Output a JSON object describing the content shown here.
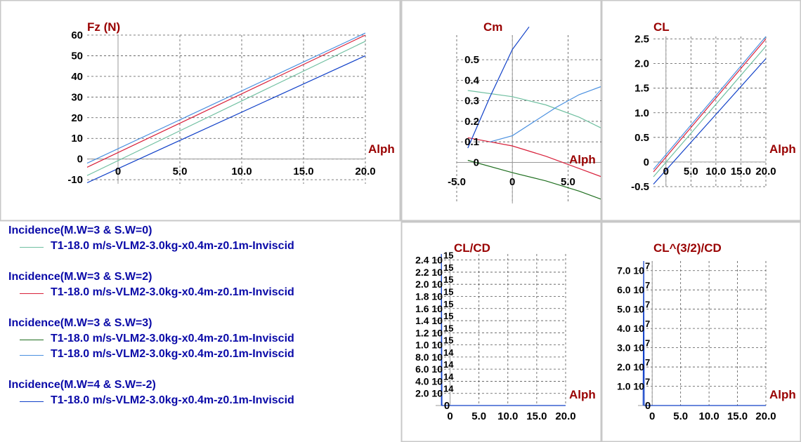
{
  "colors": {
    "axis": "#000000",
    "grid": "#555555",
    "title": "#990000",
    "tick": "#000000",
    "legend_text": "#0a0aa8",
    "panel_border": "#c8c8c8",
    "series": [
      "#6fbfa0",
      "#d8203a",
      "#1e6e1e",
      "#4a90e0",
      "#1040c8"
    ]
  },
  "legend": {
    "groups": [
      {
        "title": "Incidence(M.W=3 & S.W=0)",
        "items": [
          {
            "label": "T1-18.0 m/s-VLM2-3.0kg-x0.4m-z0.1m-Inviscid",
            "color_index": 0
          }
        ]
      },
      {
        "title": "Incidence(M.W=3 & S.W=2)",
        "items": [
          {
            "label": "T1-18.0 m/s-VLM2-3.0kg-x0.4m-z0.1m-Inviscid",
            "color_index": 1
          }
        ]
      },
      {
        "title": "Incidence(M.W=3 & S.W=3)",
        "items": [
          {
            "label": "T1-18.0 m/s-VLM2-3.0kg-x0.4m-z0.1m-Inviscid",
            "color_index": 2
          },
          {
            "label": "T1-18.0 m/s-VLM2-3.0kg-x0.4m-z0.1m-Inviscid",
            "color_index": 3
          }
        ]
      },
      {
        "title": "Incidence(M.W=4 & S.W=-2)",
        "items": [
          {
            "label": "T1-18.0 m/s-VLM2-3.0kg-x0.4m-z0.1m-Inviscid",
            "color_index": 4
          }
        ]
      }
    ]
  },
  "chart_data": [
    {
      "type": "line",
      "title": "Fz (N)",
      "xlabel": "Alph",
      "xlim": [
        -2.5,
        20
      ],
      "ylim": [
        -12,
        60
      ],
      "xticks": [
        "0",
        "5.0",
        "10.0",
        "15.0",
        "20.0"
      ],
      "xtick_values": [
        0,
        5,
        10,
        15,
        20
      ],
      "yticks": [
        "-10",
        "0",
        "10",
        "20",
        "30",
        "40",
        "50",
        "60"
      ],
      "ytick_values": [
        -10,
        0,
        10,
        20,
        30,
        40,
        50,
        60
      ],
      "grid": true,
      "series": [
        {
          "color_index": 0,
          "x": [
            -2.5,
            20
          ],
          "y": [
            -8,
            57
          ]
        },
        {
          "color_index": 1,
          "x": [
            -2.5,
            20
          ],
          "y": [
            -4,
            60
          ]
        },
        {
          "color_index": 3,
          "x": [
            -2.5,
            20
          ],
          "y": [
            -2,
            61
          ]
        },
        {
          "color_index": 4,
          "x": [
            -2.5,
            20
          ],
          "y": [
            -11.5,
            50
          ]
        }
      ]
    },
    {
      "type": "line",
      "title": "Cm",
      "xlabel": "Alph",
      "xlim": [
        -5,
        8
      ],
      "ylim": [
        -0.2,
        0.62
      ],
      "xticks": [
        "-5.0",
        "0",
        "5.0"
      ],
      "xtick_values": [
        -5,
        0,
        5
      ],
      "yticks": [
        "0",
        "0.1",
        "0.2",
        "0.3",
        "0.4",
        "0.5"
      ],
      "ytick_values": [
        0,
        0.1,
        0.2,
        0.3,
        0.4,
        0.5
      ],
      "grid": true,
      "series": [
        {
          "color_index": 0,
          "x": [
            -4,
            0,
            3,
            6,
            9
          ],
          "y": [
            0.35,
            0.32,
            0.28,
            0.22,
            0.14
          ]
        },
        {
          "color_index": 1,
          "x": [
            -4,
            0,
            3,
            6,
            9
          ],
          "y": [
            0.12,
            0.08,
            0.03,
            -0.03,
            -0.09
          ]
        },
        {
          "color_index": 2,
          "x": [
            -4,
            0,
            3,
            6,
            9
          ],
          "y": [
            0.01,
            -0.05,
            -0.09,
            -0.14,
            -0.2
          ]
        },
        {
          "color_index": 3,
          "x": [
            -2,
            0,
            2,
            4,
            6,
            8,
            9
          ],
          "y": [
            0.1,
            0.13,
            0.2,
            0.27,
            0.33,
            0.37,
            0.38
          ]
        },
        {
          "color_index": 4,
          "x": [
            -4,
            -2,
            0,
            1.5
          ],
          "y": [
            0.07,
            0.32,
            0.55,
            0.66
          ]
        }
      ]
    },
    {
      "type": "line",
      "title": "CL",
      "xlabel": "Alph",
      "xlim": [
        -2.5,
        20
      ],
      "ylim": [
        -0.5,
        2.55
      ],
      "xticks": [
        "0",
        "5.0",
        "10.0",
        "15.0",
        "20.0"
      ],
      "xtick_values": [
        0,
        5,
        10,
        15,
        20
      ],
      "yticks": [
        "-0.5",
        "0",
        "0.5",
        "1.0",
        "1.5",
        "2.0",
        "2.5"
      ],
      "ytick_values": [
        -0.5,
        0,
        0.5,
        1.0,
        1.5,
        2.0,
        2.5
      ],
      "grid": true,
      "series": [
        {
          "color_index": 0,
          "x": [
            -2.5,
            20
          ],
          "y": [
            -0.3,
            2.35
          ]
        },
        {
          "color_index": 1,
          "x": [
            -2.5,
            20
          ],
          "y": [
            -0.2,
            2.5
          ]
        },
        {
          "color_index": 3,
          "x": [
            -2.5,
            20
          ],
          "y": [
            -0.15,
            2.55
          ]
        },
        {
          "color_index": 4,
          "x": [
            -2.5,
            20
          ],
          "y": [
            -0.45,
            2.1
          ]
        }
      ]
    },
    {
      "type": "line",
      "title": "CL/CD",
      "xlabel": "Alph",
      "xlim": [
        -2.5,
        20
      ],
      "ylim": [
        0,
        2500000000000000.0
      ],
      "xticks": [
        "0",
        "5.0",
        "10.0",
        "15.0",
        "20.0"
      ],
      "xtick_values": [
        0,
        5,
        10,
        15,
        20
      ],
      "yticks": [
        "2.0 10",
        "4.0 10",
        "6.0 10",
        "8.0 10",
        "1.0 10",
        "1.2 10",
        "1.4 10",
        "1.6 10",
        "1.8 10",
        "2.0 10",
        "2.2 10",
        "2.4 10"
      ],
      "ytick_exponents": [
        "14",
        "14",
        "14",
        "14",
        "15",
        "15",
        "15",
        "15",
        "15",
        "15",
        "15",
        "15"
      ],
      "ytick_values": [
        200000000000000.0,
        400000000000000.0,
        600000000000000.0,
        800000000000000.0,
        1000000000000000.0,
        1200000000000000.0,
        1400000000000000.0,
        1600000000000000.0,
        1800000000000000.0,
        2000000000000000.0,
        2200000000000000.0,
        2400000000000000.0
      ],
      "yzero_label": "0",
      "grid": true,
      "series": [
        {
          "color_index": 4,
          "x": [
            -1.5,
            -1.5,
            -1.4,
            20
          ],
          "y": [
            0,
            2500000000000000.0,
            0,
            0
          ]
        }
      ]
    },
    {
      "type": "line",
      "title": "CL^(3/2)/CD",
      "xlabel": "Alph",
      "xlim": [
        -2.5,
        20
      ],
      "ylim": [
        0,
        75000000.0
      ],
      "xticks": [
        "0",
        "5.0",
        "10.0",
        "15.0",
        "20.0"
      ],
      "xtick_values": [
        0,
        5,
        10,
        15,
        20
      ],
      "yticks": [
        "1.0 10",
        "2.0 10",
        "3.0 10",
        "4.0 10",
        "5.0 10",
        "6.0 10",
        "7.0 10"
      ],
      "ytick_exponents": [
        "7",
        "7",
        "7",
        "7",
        "7",
        "7",
        "7"
      ],
      "ytick_values": [
        10000000.0,
        20000000.0,
        30000000.0,
        40000000.0,
        50000000.0,
        60000000.0,
        70000000.0
      ],
      "yzero_label": "0",
      "grid": true,
      "series": [
        {
          "color_index": 4,
          "x": [
            -1.6,
            -1.5,
            -1.4,
            20
          ],
          "y": [
            0,
            75000000.0,
            0,
            0
          ]
        }
      ]
    }
  ]
}
